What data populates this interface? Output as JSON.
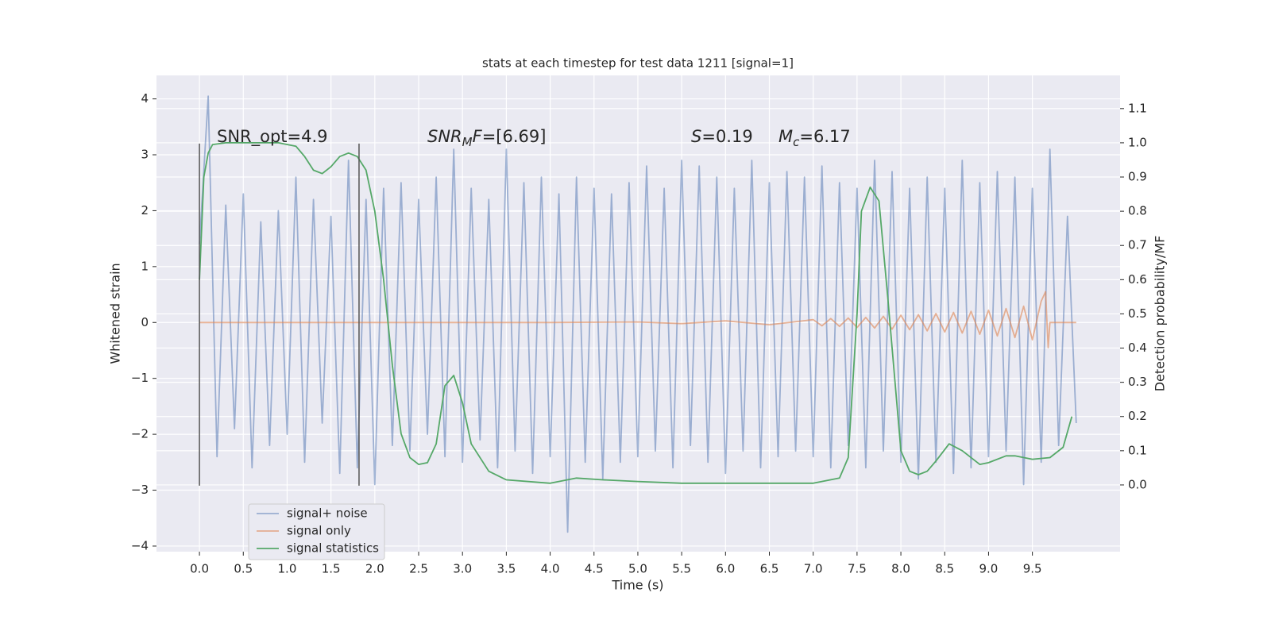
{
  "chart_data": {
    "type": "line",
    "title": "stats at each timestep for test data 1211 [signal=1]",
    "xlabel": "Time (s)",
    "ylabel": "Whitened strain",
    "y2label": "Detection probability/MF",
    "xlim": [
      -0.49,
      10.5
    ],
    "ylim": [
      -4.1,
      4.42
    ],
    "y2lim": [
      -0.195,
      1.197
    ],
    "xticks": [
      {
        "value": 0,
        "label": "0.0"
      },
      {
        "value": 0.5,
        "label": "0.5"
      },
      {
        "value": 1,
        "label": "1.0"
      },
      {
        "value": 1.5,
        "label": "1.5"
      },
      {
        "value": 2,
        "label": "2.0"
      },
      {
        "value": 2.5,
        "label": "2.5"
      },
      {
        "value": 3,
        "label": "3.0"
      },
      {
        "value": 3.5,
        "label": "3.5"
      },
      {
        "value": 4,
        "label": "4.0"
      },
      {
        "value": 4.5,
        "label": "4.5"
      },
      {
        "value": 5,
        "label": "5.0"
      },
      {
        "value": 5.5,
        "label": "5.5"
      },
      {
        "value": 6,
        "label": "6.0"
      },
      {
        "value": 6.5,
        "label": "6.5"
      },
      {
        "value": 7,
        "label": "7.0"
      },
      {
        "value": 7.5,
        "label": "7.5"
      },
      {
        "value": 8,
        "label": "8.0"
      },
      {
        "value": 8.5,
        "label": "8.5"
      },
      {
        "value": 9,
        "label": "9.0"
      },
      {
        "value": 9.5,
        "label": "9.5"
      }
    ],
    "yticks": [
      {
        "value": -4,
        "label": "−4"
      },
      {
        "value": -3,
        "label": "−3"
      },
      {
        "value": -2,
        "label": "−2"
      },
      {
        "value": -1,
        "label": "−1"
      },
      0,
      1,
      2,
      3,
      4
    ],
    "y2ticks": [
      {
        "value": 0,
        "label": "0.0"
      },
      {
        "value": 0.1,
        "label": "0.1"
      },
      {
        "value": 0.2,
        "label": "0.2"
      },
      {
        "value": 0.3,
        "label": "0.3"
      },
      {
        "value": 0.4,
        "label": "0.4"
      },
      {
        "value": 0.5,
        "label": "0.5"
      },
      {
        "value": 0.6,
        "label": "0.6"
      },
      {
        "value": 0.7,
        "label": "0.7"
      },
      {
        "value": 0.8,
        "label": "0.8"
      },
      {
        "value": 0.9,
        "label": "0.9"
      },
      {
        "value": 1,
        "label": "1.0"
      },
      {
        "value": 1.1,
        "label": "1.1"
      }
    ],
    "grid": true,
    "legend": "lower left",
    "series": [
      {
        "name": "signal+ noise",
        "color": "#4c72b0",
        "alpha": 0.5,
        "x": [
          0,
          0.1,
          0.2,
          0.3,
          0.4,
          0.5,
          0.6,
          0.7,
          0.8,
          0.9,
          1,
          1.1,
          1.2,
          1.3,
          1.4,
          1.5,
          1.6,
          1.7,
          1.8,
          1.9,
          2,
          2.1,
          2.2,
          2.3,
          2.4,
          2.5,
          2.6,
          2.7,
          2.8,
          2.9,
          3,
          3.1,
          3.2,
          3.3,
          3.4,
          3.5,
          3.6,
          3.7,
          3.8,
          3.9,
          4,
          4.1,
          4.2,
          4.3,
          4.4,
          4.5,
          4.6,
          4.7,
          4.8,
          4.9,
          5,
          5.1,
          5.2,
          5.3,
          5.4,
          5.5,
          5.6,
          5.7,
          5.8,
          5.9,
          6,
          6.1,
          6.2,
          6.3,
          6.4,
          6.5,
          6.6,
          6.7,
          6.8,
          6.9,
          7,
          7.1,
          7.2,
          7.3,
          7.4,
          7.5,
          7.6,
          7.7,
          7.8,
          7.9,
          8,
          8.1,
          8.2,
          8.3,
          8.4,
          8.5,
          8.6,
          8.7,
          8.8,
          8.9,
          9,
          9.1,
          9.2,
          9.3,
          9.4,
          9.5,
          9.6,
          9.7,
          9.8,
          9.9,
          10
        ],
        "values": [
          1.4,
          4.05,
          -2.4,
          2.1,
          -1.9,
          2.3,
          -2.6,
          1.8,
          -2.2,
          2.0,
          -2.0,
          2.6,
          -2.5,
          2.2,
          -1.8,
          1.9,
          -2.7,
          2.9,
          -2.6,
          2.2,
          -2.9,
          2.4,
          -2.2,
          2.5,
          -2.3,
          2.2,
          -2.0,
          2.6,
          -2.4,
          3.1,
          -2.5,
          2.4,
          -2.1,
          2.2,
          -2.6,
          3.1,
          -2.3,
          2.5,
          -2.7,
          2.6,
          -2.4,
          2.3,
          -3.75,
          2.6,
          -2.5,
          2.4,
          -2.8,
          2.3,
          -2.5,
          2.5,
          -2.4,
          2.8,
          -2.3,
          2.4,
          -2.6,
          2.9,
          -2.2,
          2.8,
          -2.5,
          2.6,
          -2.7,
          2.4,
          -2.3,
          2.9,
          -2.6,
          2.5,
          -2.4,
          2.7,
          -2.3,
          2.6,
          -2.4,
          2.8,
          -2.6,
          2.5,
          -2.2,
          2.4,
          -2.6,
          2.9,
          -2.3,
          2.7,
          -2.5,
          2.4,
          -2.8,
          2.6,
          -2.5,
          2.4,
          -2.7,
          2.9,
          -2.6,
          2.5,
          -2.4,
          2.7,
          -2.3,
          2.6,
          -2.9,
          2.4,
          -2.5,
          3.1,
          -2.2,
          1.9,
          -1.8
        ]
      },
      {
        "name": "signal only",
        "color": "#dd8452",
        "alpha": 0.6,
        "x": [
          0,
          4,
          5,
          5.5,
          6,
          6.5,
          7,
          7.1,
          7.2,
          7.3,
          7.4,
          7.5,
          7.6,
          7.7,
          7.8,
          7.9,
          8,
          8.1,
          8.2,
          8.3,
          8.4,
          8.5,
          8.6,
          8.7,
          8.8,
          8.9,
          9,
          9.1,
          9.2,
          9.3,
          9.4,
          9.5,
          9.6,
          9.65,
          9.68,
          9.7,
          10
        ],
        "values": [
          0,
          0,
          0.01,
          -0.02,
          0.03,
          -0.04,
          0.05,
          -0.06,
          0.07,
          -0.07,
          0.08,
          -0.09,
          0.09,
          -0.1,
          0.11,
          -0.12,
          0.13,
          -0.13,
          0.14,
          -0.15,
          0.16,
          -0.17,
          0.18,
          -0.19,
          0.2,
          -0.21,
          0.22,
          -0.24,
          0.25,
          -0.27,
          0.29,
          -0.31,
          0.38,
          0.55,
          -0.45,
          0,
          0
        ]
      },
      {
        "name": "signal statistics",
        "color": "#55a868",
        "alpha": 1,
        "axis": "y2",
        "x": [
          0,
          0.05,
          0.1,
          0.15,
          0.3,
          0.9,
          1.1,
          1.2,
          1.3,
          1.4,
          1.5,
          1.6,
          1.7,
          1.8,
          1.9,
          2,
          2.1,
          2.2,
          2.3,
          2.4,
          2.5,
          2.6,
          2.7,
          2.8,
          2.9,
          3,
          3.1,
          3.3,
          3.5,
          4,
          4.3,
          4.6,
          5,
          5.5,
          6,
          6.5,
          7,
          7.3,
          7.4,
          7.5,
          7.55,
          7.65,
          7.75,
          7.85,
          8,
          8.1,
          8.2,
          8.3,
          8.4,
          8.55,
          8.7,
          8.9,
          9,
          9.2,
          9.3,
          9.5,
          9.7,
          9.85,
          9.95
        ],
        "values": [
          0.6,
          0.9,
          0.97,
          0.995,
          1,
          1,
          0.99,
          0.96,
          0.92,
          0.91,
          0.93,
          0.96,
          0.97,
          0.96,
          0.92,
          0.8,
          0.6,
          0.35,
          0.15,
          0.08,
          0.06,
          0.065,
          0.12,
          0.29,
          0.32,
          0.24,
          0.12,
          0.04,
          0.015,
          0.005,
          0.02,
          0.015,
          0.01,
          0.005,
          0.005,
          0.005,
          0.005,
          0.02,
          0.08,
          0.5,
          0.8,
          0.87,
          0.83,
          0.55,
          0.1,
          0.04,
          0.03,
          0.04,
          0.07,
          0.12,
          0.1,
          0.06,
          0.065,
          0.085,
          0.085,
          0.075,
          0.08,
          0.11,
          0.2
        ]
      }
    ],
    "vlines": {
      "x": [
        0,
        1.82
      ],
      "ymin": -2.92,
      "ymax": 3.2,
      "color": "#555555"
    },
    "annotations": [
      [
        {
          "text": "SNR_opt=4.9"
        }
      ],
      [
        {
          "text": "SNR",
          "italic": true
        },
        {
          "text": "M",
          "italic": true,
          "sub": true
        },
        {
          "text": "F",
          "italic": true
        },
        {
          "text": "=[6.69]"
        }
      ],
      [
        {
          "text": "S",
          "italic": true
        },
        {
          "text": "=0.19"
        }
      ],
      [
        {
          "text": "M",
          "italic": true
        },
        {
          "text": "c",
          "italic": true,
          "sub": true
        },
        {
          "text": "=6.17"
        }
      ]
    ]
  }
}
